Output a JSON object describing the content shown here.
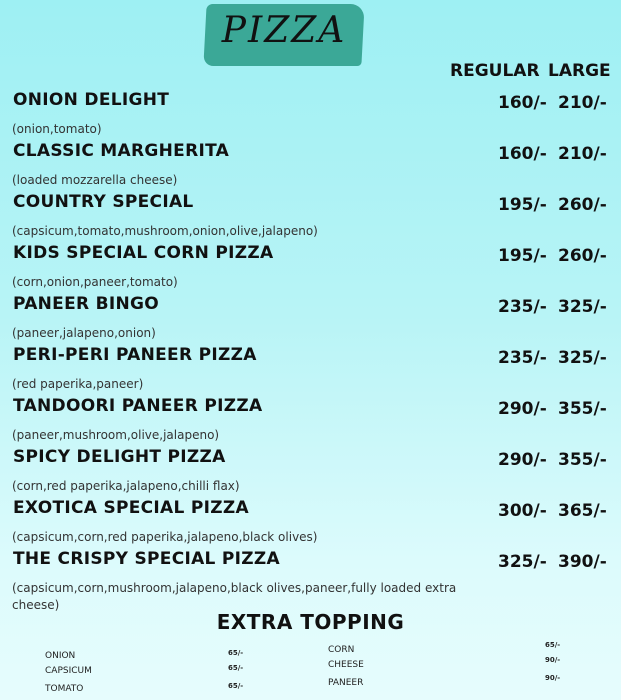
{
  "title": "PIZZA",
  "headers": {
    "regular": "REGULAR",
    "large": "LARGE"
  },
  "items": [
    {
      "name": "ONION DELIGHT",
      "desc": "(onion,tomato)",
      "regular": "160/-",
      "large": "210/-"
    },
    {
      "name": "CLASSIC MARGHERITA",
      "desc": "(loaded mozzarella cheese)",
      "regular": "160/-",
      "large": "210/-"
    },
    {
      "name": "COUNTRY SPECIAL",
      "desc": "(capsicum,tomato,mushroom,onion,olive,jalapeno)",
      "regular": "195/-",
      "large": "260/-"
    },
    {
      "name": "KIDS SPECIAL CORN PIZZA",
      "desc": "(corn,onion,paneer,tomato)",
      "regular": "195/-",
      "large": "260/-"
    },
    {
      "name": "PANEER BINGO",
      "desc": "(paneer,jalapeno,onion)",
      "regular": "235/-",
      "large": "325/-"
    },
    {
      "name": "PERI-PERI PANEER PIZZA",
      "desc": "(red paperika,paneer)",
      "regular": "235/-",
      "large": "325/-"
    },
    {
      "name": "TANDOORI PANEER PIZZA",
      "desc": "(paneer,mushroom,olive,jalapeno)",
      "regular": "290/-",
      "large": "355/-"
    },
    {
      "name": "SPICY DELIGHT PIZZA",
      "desc": "(corn,red paperika,jalapeno,chilli flax)",
      "regular": "290/-",
      "large": "355/-"
    },
    {
      "name": "EXOTICA SPECIAL PIZZA",
      "desc": "(capsicum,corn,red paperika,jalapeno,black olives)",
      "regular": "300/-",
      "large": "365/-"
    },
    {
      "name": "THE CRISPY SPECIAL PIZZA",
      "desc": "(capsicum,corn,mushroom,jalapeno,black olives,paneer,fully loaded extra cheese)",
      "regular": "325/-",
      "large": "390/-"
    }
  ],
  "extra_topping": {
    "title": "EXTRA TOPPING",
    "left": [
      {
        "name": "ONION",
        "price": "65/-"
      },
      {
        "name": "CAPSICUM",
        "price": "65/-"
      },
      {
        "name": "TOMATO",
        "price": "65/-"
      }
    ],
    "right": [
      {
        "name": "CORN",
        "price": "65/-"
      },
      {
        "name": "CHEESE",
        "price": "90/-"
      },
      {
        "name": "PANEER",
        "price": "90/-"
      }
    ]
  },
  "colors": {
    "brush": "#3ba897",
    "background_top": "#9ef0f3",
    "background_bottom": "#e6fcfd"
  }
}
